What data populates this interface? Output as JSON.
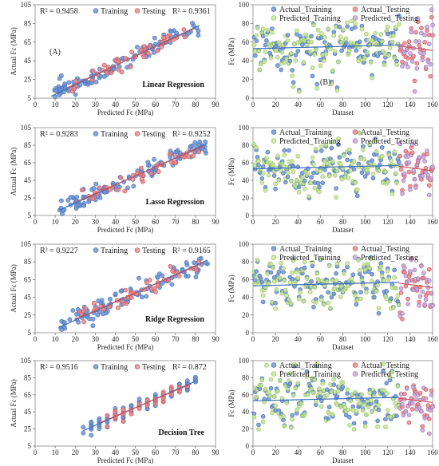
{
  "colors": {
    "training": "#6f95d4",
    "training_edge": "#4a72b8",
    "testing": "#e8898d",
    "testing_edge": "#c9555b",
    "pred_training": "#c7e59a",
    "pred_training_edge": "#97c25d",
    "pred_testing": "#c9a7dc",
    "pred_testing_edge": "#9a72b4",
    "trend": "#3c6fba"
  },
  "chart_data": [
    {
      "type": "scatter",
      "id": "lr-scatter",
      "panel_label": "(A)",
      "title": "Linear Regression",
      "xlabel": "Predicted Fc (MPa)",
      "ylabel": "Actual Fc (MPa)",
      "xlim": [
        0,
        90
      ],
      "ylim": [
        5,
        105
      ],
      "xticks": [
        0,
        10,
        20,
        30,
        40,
        50,
        60,
        70,
        80,
        90
      ],
      "yticks": [
        5,
        25,
        45,
        65,
        85,
        105
      ],
      "r2_train_text": "R² = 0.9458",
      "r2_test_text": "R² = 0.9361",
      "legend": [
        "Training",
        "Testing"
      ],
      "seed": 11,
      "fit": [
        8,
        82
      ],
      "spread": 4.5
    },
    {
      "type": "line",
      "id": "lr-dataset",
      "panel_label": "(B)",
      "xlabel": "Dataset",
      "ylabel": "Fc (MPa)",
      "xlim": [
        0,
        160
      ],
      "ylim": [
        0,
        100
      ],
      "xticks": [
        0,
        20,
        40,
        60,
        80,
        100,
        120,
        140,
        160
      ],
      "yticks": [
        0,
        20,
        40,
        60,
        80,
        100
      ],
      "legend": [
        "Actual_Training",
        "Actual_Testing",
        "Predicted_Training",
        "Predicted_Testing"
      ],
      "seed": 21
    },
    {
      "type": "scatter",
      "id": "lasso-scatter",
      "title": "Lasso Regression",
      "xlabel": "Predicted Fc (MPa)",
      "ylabel": "Actual Fc (MPa)",
      "xlim": [
        0,
        90
      ],
      "ylim": [
        5,
        105
      ],
      "xticks": [
        0,
        10,
        20,
        30,
        40,
        50,
        60,
        70,
        80,
        90
      ],
      "yticks": [
        5,
        25,
        45,
        65,
        85,
        105
      ],
      "r2_train_text": "R² = 0.9283",
      "r2_test_text": "R² = 0.9252",
      "legend": [
        "Training",
        "Testing"
      ],
      "seed": 31,
      "fit": [
        12,
        86
      ],
      "spread": 5
    },
    {
      "type": "line",
      "id": "lasso-dataset",
      "xlabel": "Dataset",
      "ylabel": "Fc (MPa)",
      "xlim": [
        0,
        160
      ],
      "ylim": [
        0,
        100
      ],
      "xticks": [
        0,
        20,
        40,
        60,
        80,
        100,
        120,
        140,
        160
      ],
      "yticks": [
        0,
        20,
        40,
        60,
        80,
        100
      ],
      "legend": [
        "Actual_Training",
        "Actual_Testing",
        "Predicted_Training",
        "Predicted_Testing"
      ],
      "seed": 41
    },
    {
      "type": "scatter",
      "id": "ridge-scatter",
      "title": "Ridge Regression",
      "xlabel": "Predicted Fc (MPa)",
      "ylabel": "Actual Fc (MPa)",
      "xlim": [
        0,
        90
      ],
      "ylim": [
        5,
        105
      ],
      "xticks": [
        0,
        10,
        20,
        30,
        40,
        50,
        60,
        70,
        80,
        90
      ],
      "yticks": [
        5,
        25,
        45,
        65,
        85,
        105
      ],
      "r2_train_text": "R² = 0.9227",
      "r2_test_text": "R² = 0.9165",
      "legend": [
        "Training",
        "Testing"
      ],
      "seed": 51,
      "fit": [
        12,
        86
      ],
      "spread": 5
    },
    {
      "type": "line",
      "id": "ridge-dataset",
      "xlabel": "Dataset",
      "ylabel": "Fc (MPa)",
      "xlim": [
        0,
        160
      ],
      "ylim": [
        0,
        100
      ],
      "xticks": [
        0,
        20,
        40,
        60,
        80,
        100,
        120,
        140,
        160
      ],
      "yticks": [
        0,
        20,
        40,
        60,
        80,
        100
      ],
      "legend": [
        "Actual_Training",
        "Actual_Testing",
        "Predicted_Training",
        "Predicted_Testing"
      ],
      "seed": 61
    },
    {
      "type": "scatter",
      "id": "dt-scatter",
      "title": "Decision Tree",
      "xlabel": "Predicted Fc (MPa)",
      "ylabel": "Actual Fc (MPa)",
      "xlim": [
        0,
        90
      ],
      "ylim": [
        5,
        105
      ],
      "xticks": [
        0,
        10,
        20,
        30,
        40,
        50,
        60,
        70,
        80,
        90
      ],
      "yticks": [
        5,
        25,
        45,
        65,
        85,
        105
      ],
      "r2_train_text": "R² = 0.9516",
      "r2_test_text": "R² = 0.872",
      "legend": [
        "Training",
        "Testing"
      ],
      "seed": 71,
      "fit": [
        24,
        80
      ],
      "spread": 4,
      "discrete": true
    },
    {
      "type": "line",
      "id": "dt-dataset",
      "xlabel": "Dataset",
      "ylabel": "Fc (MPa)",
      "xlim": [
        0,
        160
      ],
      "ylim": [
        0,
        100
      ],
      "xticks": [
        0,
        20,
        40,
        60,
        80,
        100,
        120,
        140,
        160
      ],
      "yticks": [
        0,
        20,
        40,
        60,
        80,
        100
      ],
      "legend": [
        "Actual_Training",
        "Actual_Testing",
        "Predicted_Training",
        "Predicted_Testing"
      ],
      "seed": 81
    }
  ]
}
